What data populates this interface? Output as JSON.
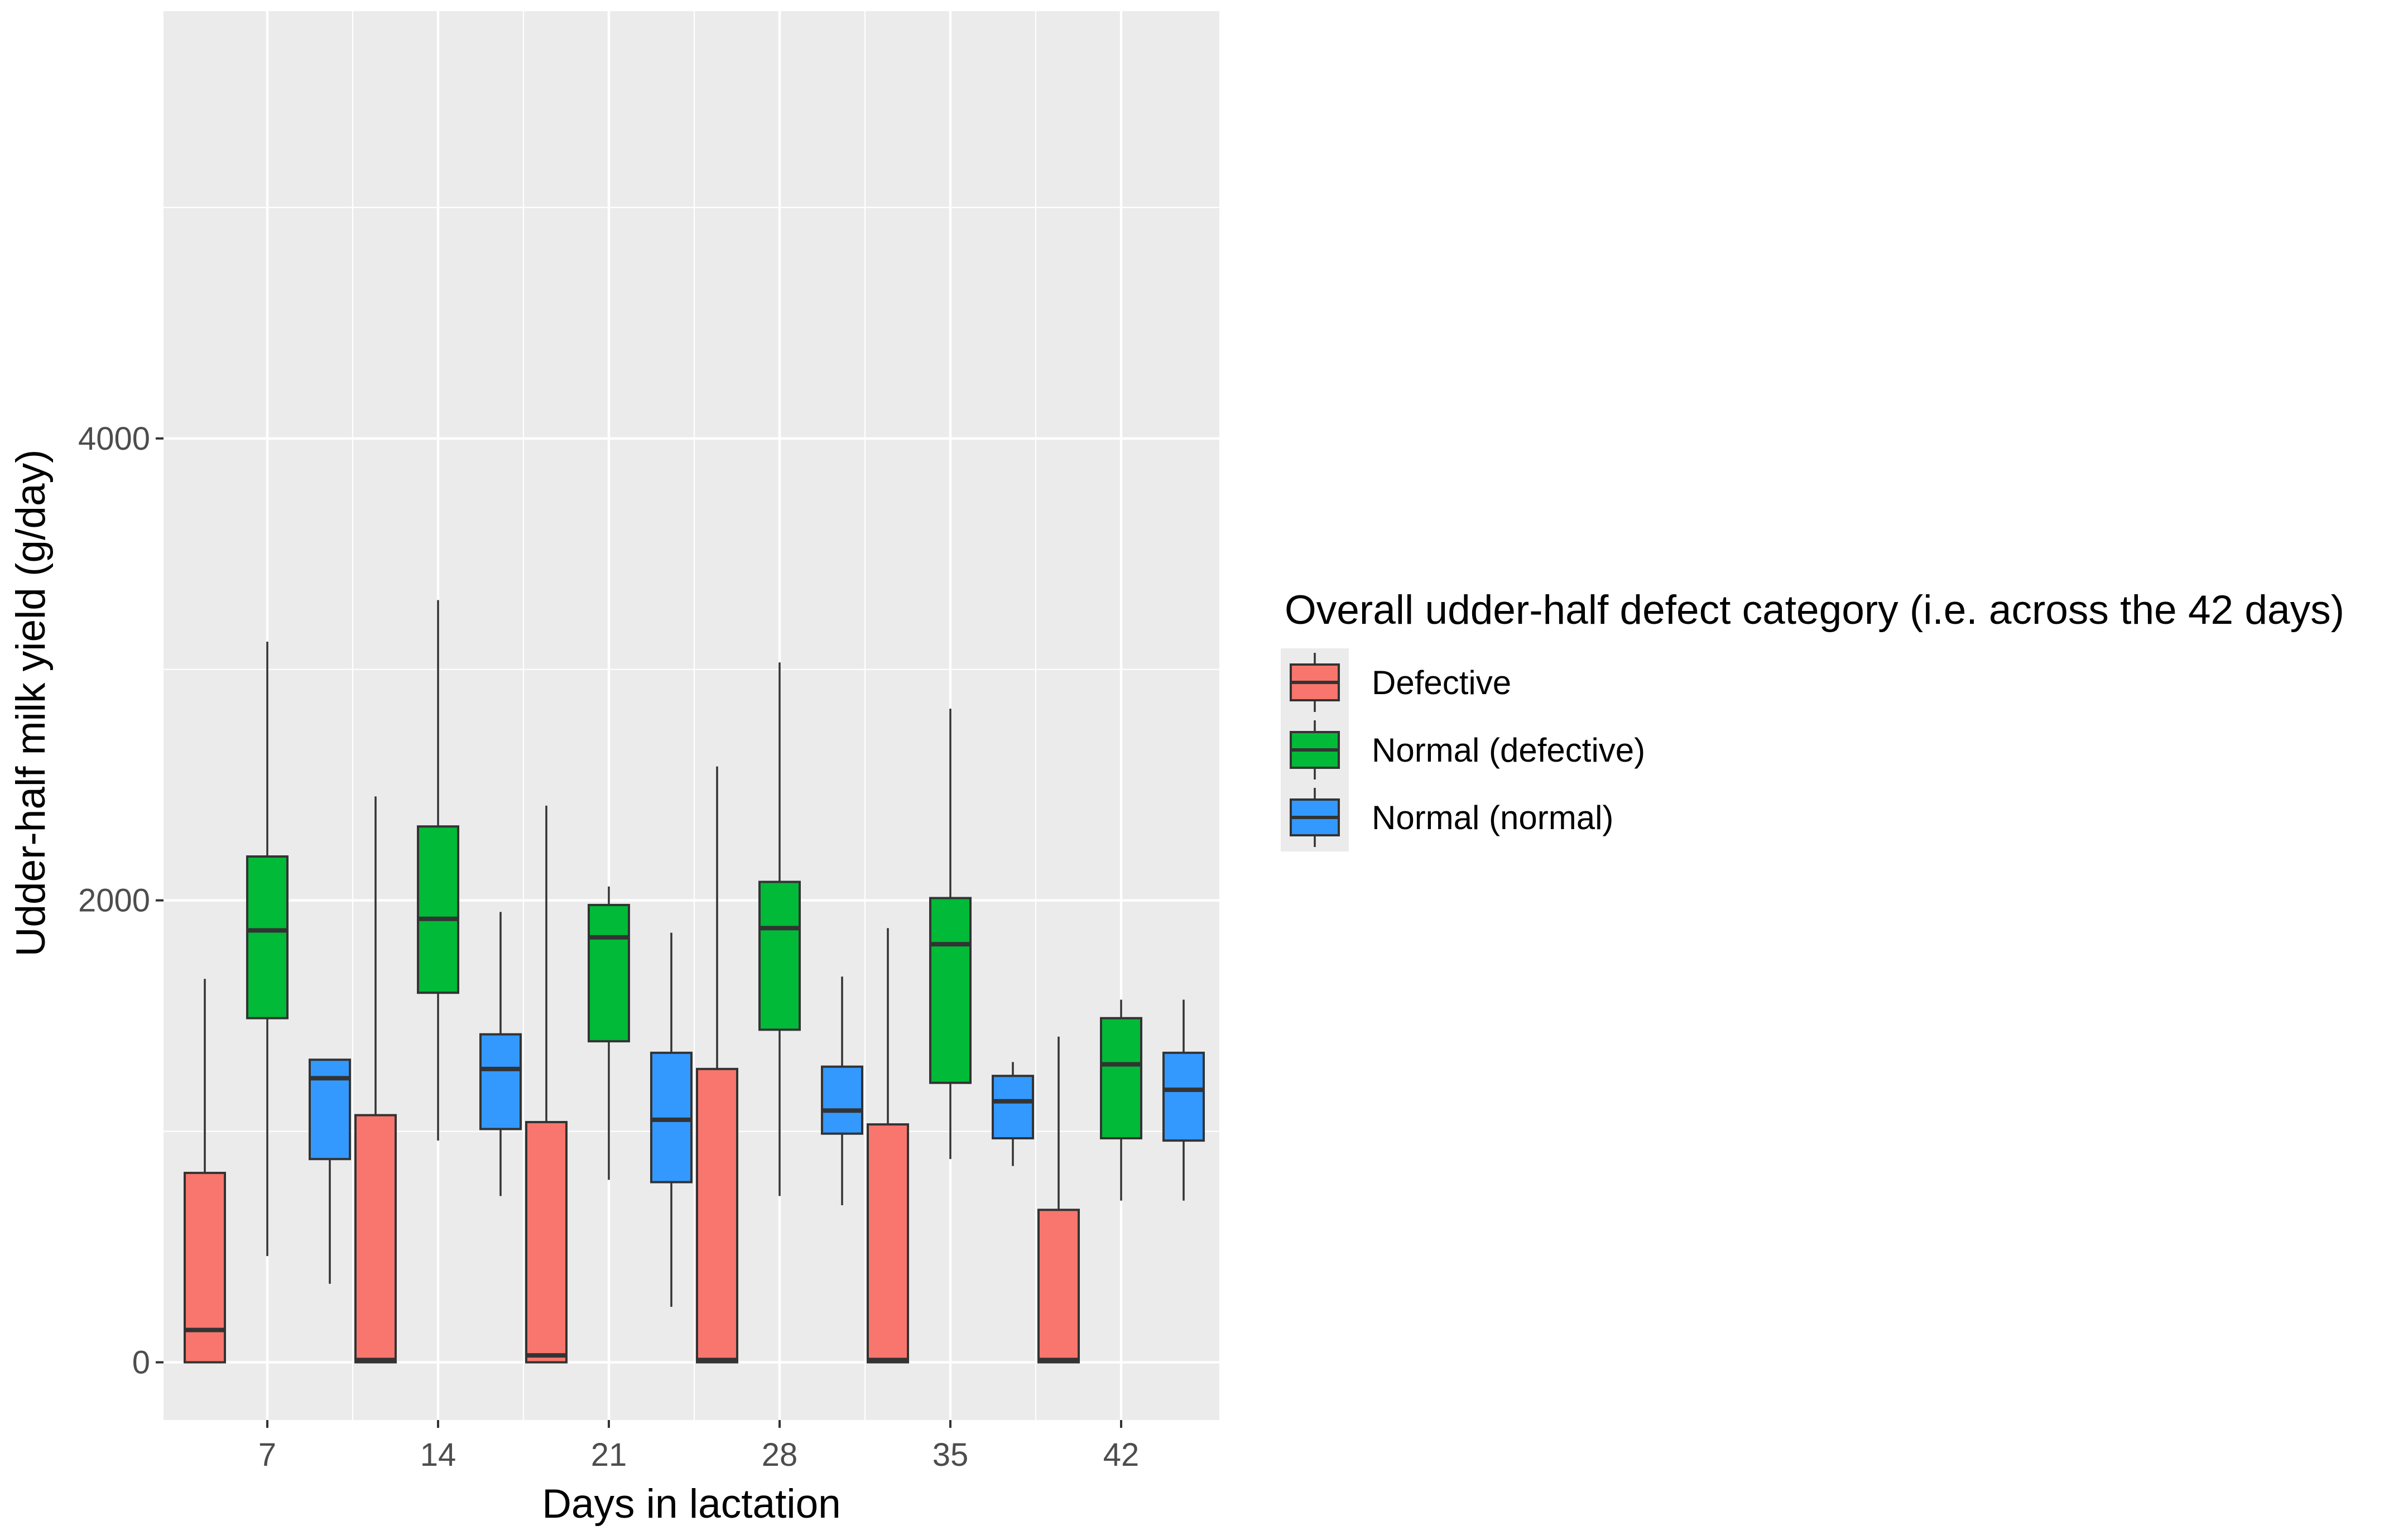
{
  "chart_data": {
    "type": "boxplot",
    "title": "",
    "xlabel": "Days in lactation",
    "ylabel": "Udder-half milk yield (g/day)",
    "ylim": [
      -250,
      5850
    ],
    "yticks": [
      0,
      2000,
      4000
    ],
    "categories": [
      "7",
      "14",
      "21",
      "28",
      "35",
      "42"
    ],
    "legend": {
      "title": "Overall udder-half defect category (i.e. across the 42 days)",
      "position": "right"
    },
    "colors": {
      "panel": "#ebebeb",
      "grid": "#ffffff",
      "outline": "#333333",
      "axis_text": "#4d4d4d"
    },
    "series": [
      {
        "name": "Defective",
        "color": "#f8766d",
        "boxes": [
          {
            "low": 0,
            "q1": 0,
            "median": 140,
            "q3": 820,
            "high": 1660
          },
          {
            "low": 0,
            "q1": 0,
            "median": 10,
            "q3": 1070,
            "high": 2450
          },
          {
            "low": 0,
            "q1": 0,
            "median": 30,
            "q3": 1040,
            "high": 2410
          },
          {
            "low": 0,
            "q1": 0,
            "median": 10,
            "q3": 1270,
            "high": 2580
          },
          {
            "low": 0,
            "q1": 0,
            "median": 10,
            "q3": 1030,
            "high": 1880
          },
          {
            "low": 0,
            "q1": 0,
            "median": 10,
            "q3": 660,
            "high": 1410
          }
        ]
      },
      {
        "name": "Normal (defective)",
        "color": "#00ba38",
        "boxes": [
          {
            "low": 460,
            "q1": 1490,
            "median": 1870,
            "q3": 2190,
            "high": 3120
          },
          {
            "low": 960,
            "q1": 1600,
            "median": 1920,
            "q3": 2320,
            "high": 3300
          },
          {
            "low": 790,
            "q1": 1390,
            "median": 1840,
            "q3": 1980,
            "high": 2060
          },
          {
            "low": 720,
            "q1": 1440,
            "median": 1880,
            "q3": 2080,
            "high": 3030
          },
          {
            "low": 880,
            "q1": 1210,
            "median": 1810,
            "q3": 2010,
            "high": 2830
          },
          {
            "low": 700,
            "q1": 970,
            "median": 1290,
            "q3": 1490,
            "high": 1570
          }
        ]
      },
      {
        "name": "Normal (normal)",
        "color": "#3399ff",
        "boxes": [
          {
            "low": 340,
            "q1": 880,
            "median": 1230,
            "q3": 1310,
            "high": 1310
          },
          {
            "low": 720,
            "q1": 1010,
            "median": 1270,
            "q3": 1420,
            "high": 1950
          },
          {
            "low": 240,
            "q1": 780,
            "median": 1050,
            "q3": 1340,
            "high": 1860
          },
          {
            "low": 680,
            "q1": 990,
            "median": 1090,
            "q3": 1280,
            "high": 1670
          },
          {
            "low": 850,
            "q1": 970,
            "median": 1130,
            "q3": 1240,
            "high": 1300
          },
          {
            "low": 700,
            "q1": 960,
            "median": 1180,
            "q3": 1340,
            "high": 1570
          }
        ]
      }
    ]
  }
}
